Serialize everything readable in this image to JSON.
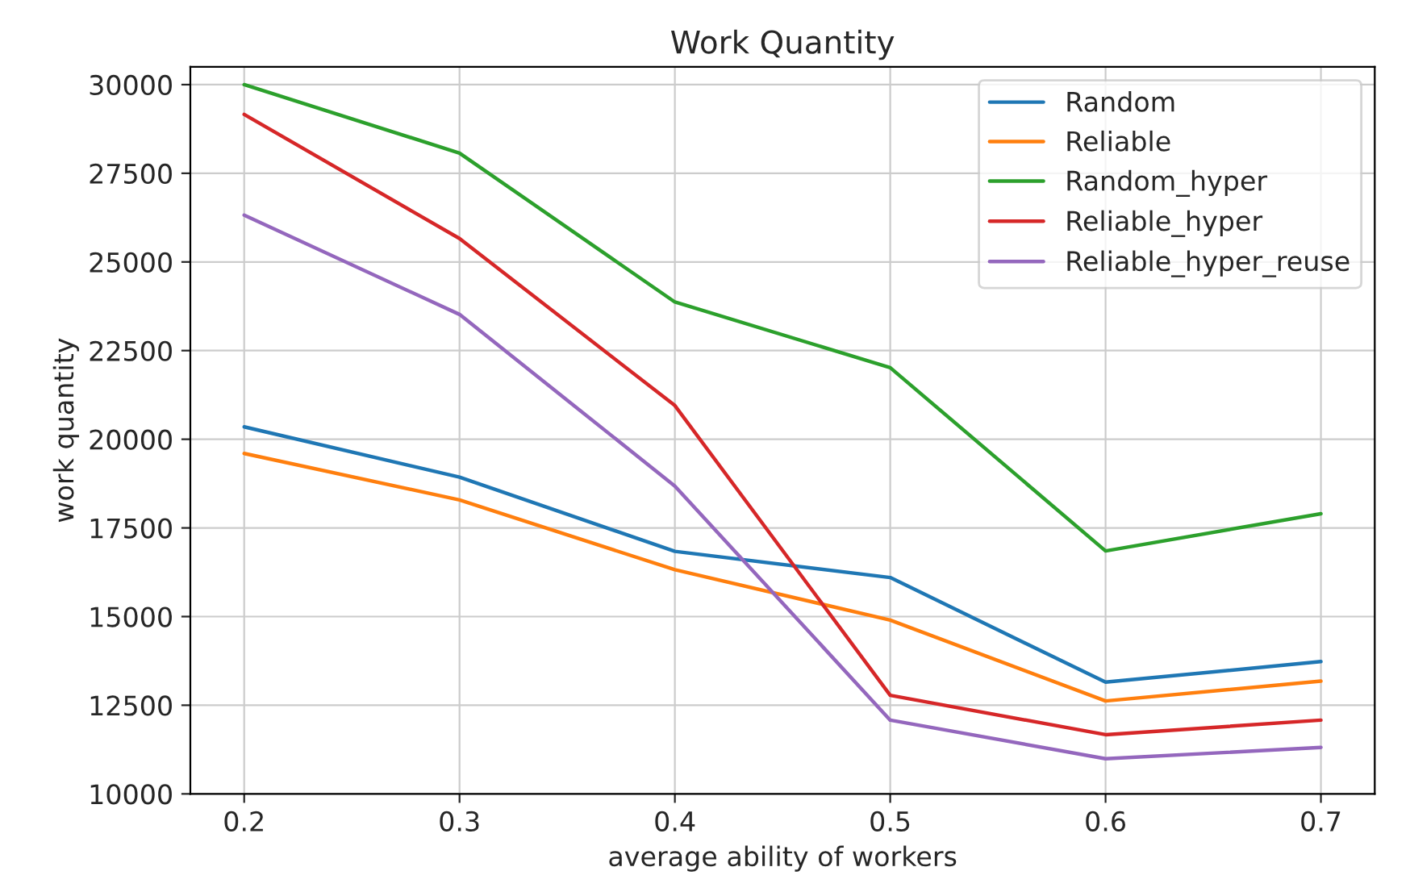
{
  "chart_data": {
    "type": "line",
    "title": "Work Quantity",
    "xlabel": "average ability of workers",
    "ylabel": "work quantity",
    "x": [
      0.2,
      0.3,
      0.4,
      0.5,
      0.6,
      0.7
    ],
    "series": [
      {
        "name": "Random",
        "color": "#1f77b4",
        "values": [
          20350,
          18930,
          16840,
          16100,
          13150,
          13730
        ]
      },
      {
        "name": "Reliable",
        "color": "#ff7f0e",
        "values": [
          19600,
          18290,
          16320,
          14900,
          12620,
          13180
        ]
      },
      {
        "name": "Random_hyper",
        "color": "#2ca02c",
        "values": [
          30000,
          28070,
          23870,
          22020,
          16850,
          17900
        ]
      },
      {
        "name": "Reliable_hyper",
        "color": "#d62728",
        "values": [
          29160,
          25660,
          20950,
          12780,
          11670,
          12080
        ]
      },
      {
        "name": "Reliable_hyper_reuse",
        "color": "#9467bd",
        "values": [
          26320,
          23520,
          18680,
          12080,
          10990,
          11310
        ]
      }
    ],
    "xlim": [
      0.175,
      0.725
    ],
    "xticks": [
      0.2,
      0.3,
      0.4,
      0.5,
      0.6,
      0.7
    ],
    "ylim": [
      10000,
      30500
    ],
    "yticks": [
      10000,
      12500,
      15000,
      17500,
      20000,
      22500,
      25000,
      27500,
      30000
    ],
    "grid": true,
    "legend": "top right",
    "marker": "none",
    "line_style": "solid"
  }
}
